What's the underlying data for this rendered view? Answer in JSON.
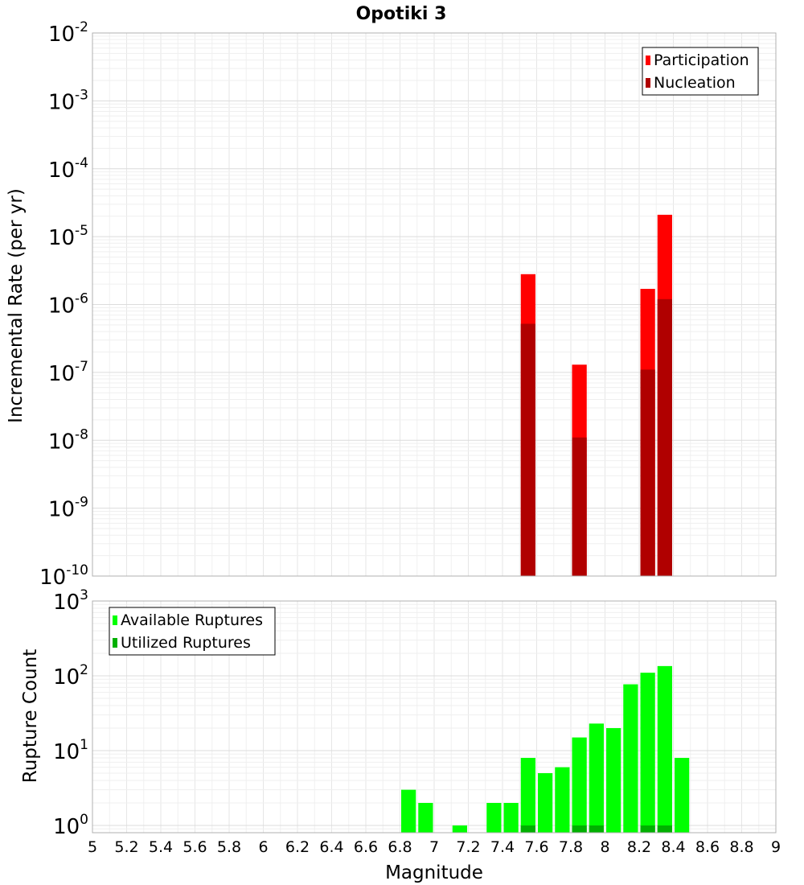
{
  "chart_data": [
    {
      "type": "bar",
      "title": "Opotiki 3",
      "xlabel": "",
      "ylabel": "Incremental Rate (per yr)",
      "yscale": "log",
      "ylim": [
        1e-10,
        0.01
      ],
      "xlim": [
        5,
        9
      ],
      "grid": true,
      "legend_position": "top-right",
      "y_ticks": [
        {
          "base": "10",
          "exp": "-10",
          "value": 1e-10
        },
        {
          "base": "10",
          "exp": "-9",
          "value": 1e-09
        },
        {
          "base": "10",
          "exp": "-8",
          "value": 1e-08
        },
        {
          "base": "10",
          "exp": "-7",
          "value": 1e-07
        },
        {
          "base": "10",
          "exp": "-6",
          "value": 1e-06
        },
        {
          "base": "10",
          "exp": "-5",
          "value": 1e-05
        },
        {
          "base": "10",
          "exp": "-4",
          "value": 0.0001
        },
        {
          "base": "10",
          "exp": "-3",
          "value": 0.001
        },
        {
          "base": "10",
          "exp": "-2",
          "value": 0.01
        }
      ],
      "bin_width": 0.1,
      "series": [
        {
          "name": "Participation",
          "color": "#ff0000",
          "points": [
            {
              "x": 7.55,
              "y": 2.8e-06
            },
            {
              "x": 7.85,
              "y": 1.3e-07
            },
            {
              "x": 8.25,
              "y": 1.7e-06
            },
            {
              "x": 8.35,
              "y": 2.1e-05
            }
          ]
        },
        {
          "name": "Nucleation",
          "color": "#b00000",
          "points": [
            {
              "x": 7.55,
              "y": 5.2e-07
            },
            {
              "x": 7.85,
              "y": 1.1e-08
            },
            {
              "x": 8.25,
              "y": 1.1e-07
            },
            {
              "x": 8.35,
              "y": 1.2e-06
            }
          ]
        }
      ]
    },
    {
      "type": "bar",
      "title": "",
      "xlabel": "Magnitude",
      "ylabel": "Rupture Count",
      "yscale": "log",
      "ylim": [
        0.8,
        1000
      ],
      "xlim": [
        5,
        9
      ],
      "grid": true,
      "legend_position": "top-left",
      "y_ticks": [
        {
          "base": "10",
          "exp": "0",
          "value": 1
        },
        {
          "base": "10",
          "exp": "1",
          "value": 10
        },
        {
          "base": "10",
          "exp": "2",
          "value": 100
        },
        {
          "base": "10",
          "exp": "3",
          "value": 1000
        }
      ],
      "x_ticks": [
        "5",
        "5.2",
        "5.4",
        "5.6",
        "5.8",
        "6",
        "6.2",
        "6.4",
        "6.6",
        "6.8",
        "7",
        "7.2",
        "7.4",
        "7.6",
        "7.8",
        "8",
        "8.2",
        "8.4",
        "8.6",
        "8.8",
        "9"
      ],
      "bin_width": 0.1,
      "series": [
        {
          "name": "Available Ruptures",
          "color": "#00ff00",
          "points": [
            {
              "x": 6.85,
              "y": 3
            },
            {
              "x": 6.95,
              "y": 2
            },
            {
              "x": 7.15,
              "y": 1
            },
            {
              "x": 7.35,
              "y": 2
            },
            {
              "x": 7.45,
              "y": 2
            },
            {
              "x": 7.55,
              "y": 8
            },
            {
              "x": 7.65,
              "y": 5
            },
            {
              "x": 7.75,
              "y": 6
            },
            {
              "x": 7.85,
              "y": 15
            },
            {
              "x": 7.95,
              "y": 23
            },
            {
              "x": 8.05,
              "y": 20
            },
            {
              "x": 8.15,
              "y": 77
            },
            {
              "x": 8.25,
              "y": 110
            },
            {
              "x": 8.35,
              "y": 135
            },
            {
              "x": 8.45,
              "y": 8
            }
          ]
        },
        {
          "name": "Utilized Ruptures",
          "color": "#00b000",
          "points": [
            {
              "x": 7.55,
              "y": 1
            },
            {
              "x": 7.85,
              "y": 1
            },
            {
              "x": 7.95,
              "y": 1
            },
            {
              "x": 8.25,
              "y": 1
            },
            {
              "x": 8.35,
              "y": 1
            }
          ]
        }
      ]
    }
  ]
}
